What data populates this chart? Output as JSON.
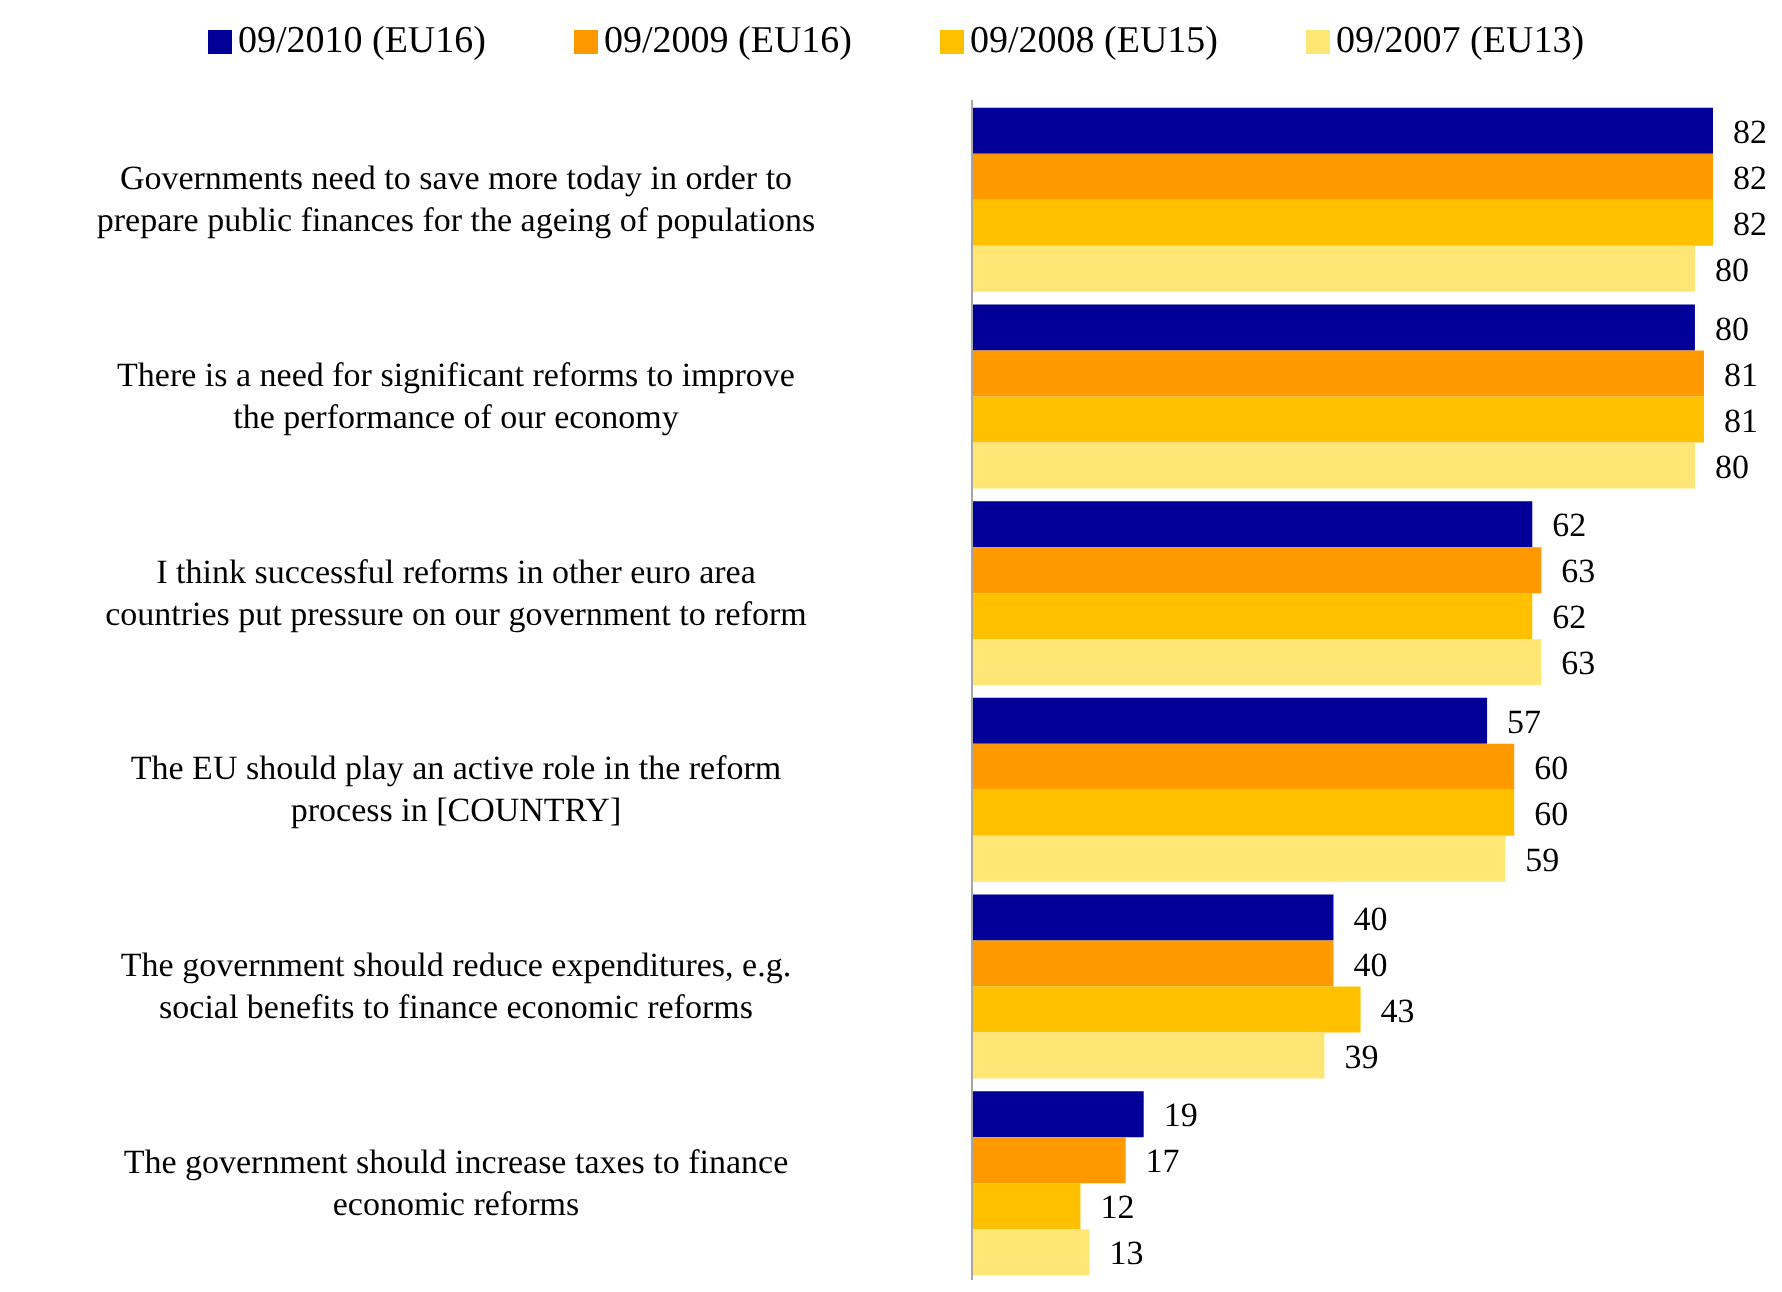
{
  "chart_data": {
    "type": "bar",
    "orientation": "horizontal",
    "data_labels": true,
    "legend": "top",
    "grid": false,
    "categories": [
      "Governments need to save more today in order to prepare public finances for the ageing of populations",
      "There is a need for significant reforms to improve the performance of our economy",
      "I think successful reforms in other euro area countries put pressure on our government to reform",
      "The EU should play an active role in the reform process in [COUNTRY]",
      "The government should reduce expenditures, e.g. social benefits to finance economic reforms",
      "The government should increase taxes to finance economic reforms"
    ],
    "series": [
      {
        "name": "09/2010 (EU16)",
        "color": "#000099",
        "values": [
          82,
          80,
          62,
          57,
          40,
          19
        ]
      },
      {
        "name": "09/2009 (EU16)",
        "color": "#ff9900",
        "values": [
          82,
          81,
          63,
          60,
          40,
          17
        ]
      },
      {
        "name": "09/2008 (EU15)",
        "color": "#ffc000",
        "values": [
          82,
          81,
          62,
          60,
          43,
          12
        ]
      },
      {
        "name": "09/2007 (EU13)",
        "color": "#ffe675",
        "values": [
          80,
          80,
          63,
          59,
          39,
          13
        ]
      }
    ]
  }
}
